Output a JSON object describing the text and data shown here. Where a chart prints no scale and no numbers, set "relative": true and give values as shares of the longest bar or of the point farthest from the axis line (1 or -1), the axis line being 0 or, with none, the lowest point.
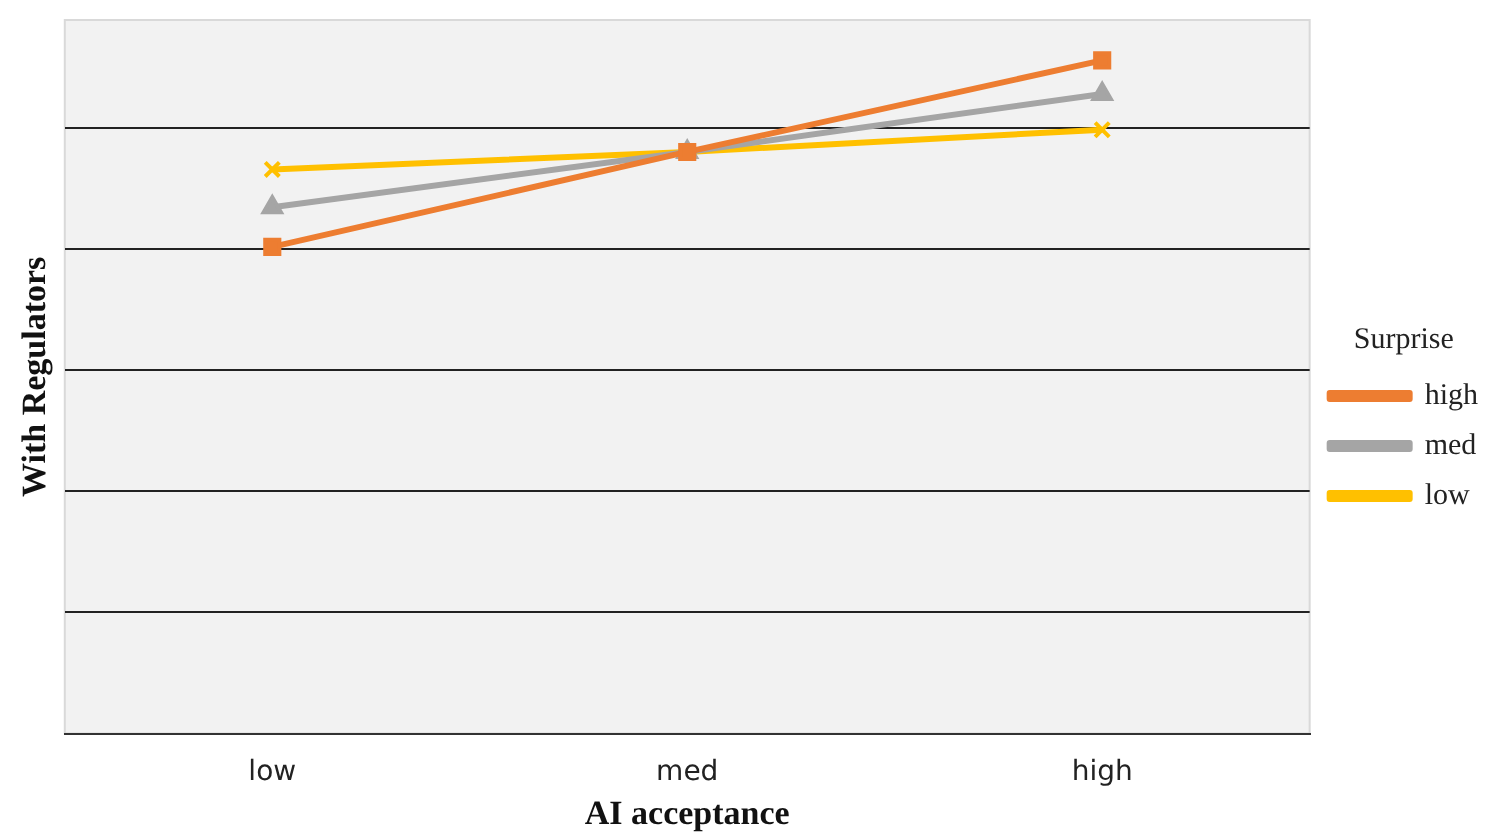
{
  "chart_data": {
    "type": "line",
    "xlabel": "AI acceptance",
    "ylabel": "With Regulators",
    "legend_title": "Surprise",
    "categories": [
      "low",
      "med",
      "high"
    ],
    "relative": true,
    "grid": "y",
    "legend": "right",
    "line_style": "solid",
    "series": [
      {
        "name": "high",
        "color": "#ed7d31",
        "marker": "square",
        "values": [
          0.723,
          0.864,
          1
        ]
      },
      {
        "name": "med",
        "color": "#a5a5a5",
        "marker": "triangle",
        "values": [
          0.782,
          0.864,
          0.95
        ]
      },
      {
        "name": "low",
        "color": "#ffc000",
        "marker": "cross",
        "values": [
          0.838,
          0.864,
          0.897
        ]
      }
    ]
  }
}
